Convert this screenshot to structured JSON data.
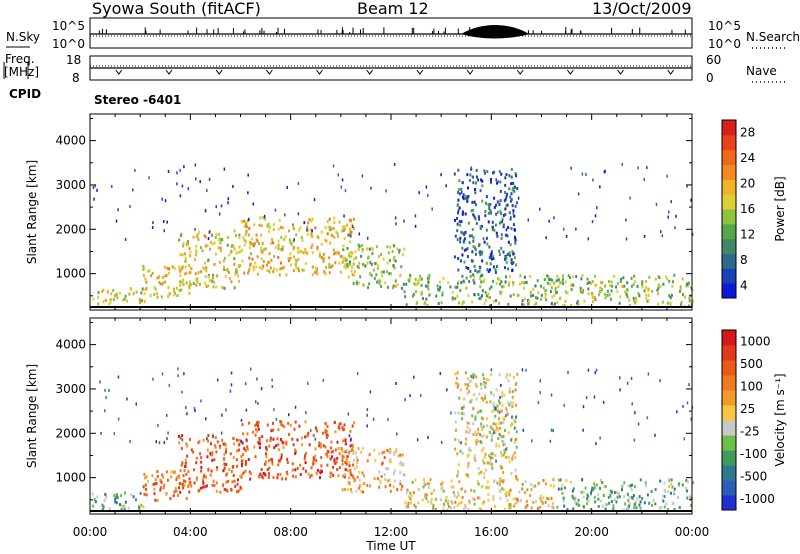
{
  "header": {
    "station": "Syowa South (fitACF)",
    "beam": "Beam 12",
    "date": "13/Oct/2009"
  },
  "noise_panel": {
    "left_label": "N.Sky",
    "right_label": "N.Search",
    "left_ticks": [
      "10^5",
      "10^0"
    ],
    "right_ticks": [
      "10^5",
      "10^0"
    ]
  },
  "freq_panel": {
    "left_label_top": "Freq.",
    "left_label_unit": "[MHz]",
    "right_label": "Nave",
    "left_ticks": [
      "18",
      "8"
    ],
    "right_ticks": [
      "60",
      "0"
    ]
  },
  "cpid": {
    "label": "CPID",
    "value": "Stereo -6401"
  },
  "chart_data": [
    {
      "type": "heatmap",
      "ylabel": "Slant Range [km]",
      "xlabel": "",
      "yticks": [
        "4000",
        "3000",
        "2000",
        "1000"
      ],
      "ytick_values": [
        4000,
        3000,
        2000,
        1000
      ],
      "ylim": [
        180,
        4600
      ],
      "xlim": [
        0,
        24
      ],
      "colorbar": {
        "label": "Power [dB]",
        "ticks": [
          "28",
          "24",
          "20",
          "16",
          "12",
          "8",
          "4"
        ],
        "colors": [
          "#0c1ad8",
          "#1d3fb8",
          "#2f6a8c",
          "#3e8a66",
          "#52a84a",
          "#8ec43c",
          "#ddd030",
          "#f2b126",
          "#f28a1f",
          "#ee6a1a",
          "#e8421a",
          "#d8211c"
        ]
      },
      "regions": [
        {
          "t0": 0.0,
          "t1": 2.2,
          "r0": 300,
          "r1": 700,
          "intensity": 0.55
        },
        {
          "t0": 2.0,
          "t1": 4.0,
          "r0": 500,
          "r1": 1200,
          "intensity": 0.6
        },
        {
          "t0": 3.5,
          "t1": 6.0,
          "r0": 700,
          "r1": 2000,
          "intensity": 0.55
        },
        {
          "t0": 6.0,
          "t1": 10.5,
          "r0": 1000,
          "r1": 2300,
          "intensity": 0.6
        },
        {
          "t0": 10.0,
          "t1": 12.5,
          "r0": 700,
          "r1": 1700,
          "intensity": 0.45
        },
        {
          "t0": 12.5,
          "t1": 18.5,
          "r0": 300,
          "r1": 1000,
          "intensity": 0.4
        },
        {
          "t0": 18.5,
          "t1": 24.0,
          "r0": 300,
          "r1": 1000,
          "intensity": 0.45
        },
        {
          "t0": 14.5,
          "t1": 17.0,
          "r0": 1000,
          "r1": 3400,
          "intensity": 0.2
        }
      ]
    },
    {
      "type": "heatmap",
      "ylabel": "Slant Range [km]",
      "xlabel": "Time UT",
      "xticks": [
        "00:00",
        "04:00",
        "08:00",
        "12:00",
        "16:00",
        "20:00",
        "00:00"
      ],
      "xtick_values": [
        0,
        4,
        8,
        12,
        16,
        20,
        24
      ],
      "yticks": [
        "4000",
        "3000",
        "2000",
        "1000"
      ],
      "ytick_values": [
        4000,
        3000,
        2000,
        1000
      ],
      "ylim": [
        180,
        4600
      ],
      "xlim": [
        0,
        24
      ],
      "colorbar": {
        "label": "Velocity [m s⁻¹]",
        "ticks": [
          "1000",
          "500",
          "100",
          "25",
          "-25",
          "-100",
          "-500",
          "-1000"
        ],
        "colors": [
          "#2030d0",
          "#2a5fb8",
          "#307890",
          "#3f9a5c",
          "#6cc04a",
          "#c8c8c8",
          "#f5c742",
          "#f29a2a",
          "#f07a1e",
          "#ec5a18",
          "#e03a18",
          "#d8161c"
        ]
      },
      "regions": [
        {
          "t0": 0.0,
          "t1": 2.2,
          "r0": 300,
          "r1": 700,
          "intensity": 0.35
        },
        {
          "t0": 2.0,
          "t1": 4.0,
          "r0": 500,
          "r1": 1200,
          "intensity": 0.75
        },
        {
          "t0": 3.5,
          "t1": 6.0,
          "r0": 700,
          "r1": 2000,
          "intensity": 0.78
        },
        {
          "t0": 6.0,
          "t1": 10.5,
          "r0": 1000,
          "r1": 2300,
          "intensity": 0.8
        },
        {
          "t0": 10.0,
          "t1": 12.5,
          "r0": 700,
          "r1": 1700,
          "intensity": 0.6
        },
        {
          "t0": 12.5,
          "t1": 18.5,
          "r0": 300,
          "r1": 1000,
          "intensity": 0.55
        },
        {
          "t0": 18.5,
          "t1": 24.0,
          "r0": 300,
          "r1": 1000,
          "intensity": 0.35
        },
        {
          "t0": 14.5,
          "t1": 17.0,
          "r0": 1000,
          "r1": 3400,
          "intensity": 0.5
        }
      ]
    }
  ]
}
